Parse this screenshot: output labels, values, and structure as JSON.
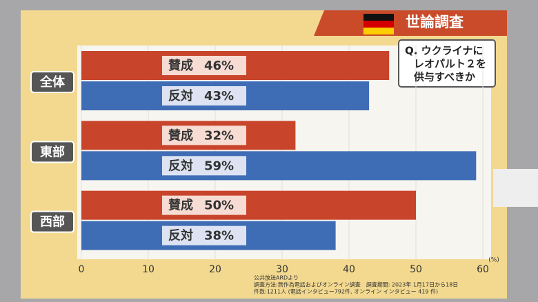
{
  "chart_data": {
    "type": "bar",
    "orientation": "horizontal",
    "title": "世論調査",
    "question": [
      "Q. ウクライナに",
      "レオパルト２を",
      "供与すべきか"
    ],
    "categories": [
      "全体",
      "東部",
      "西部"
    ],
    "series": [
      {
        "name": "賛成",
        "color": "#c8452c",
        "values": [
          46,
          32,
          50
        ],
        "value_labels": [
          "46%",
          "32%",
          "50%"
        ]
      },
      {
        "name": "反対",
        "color": "#3f6db5",
        "values": [
          43,
          59,
          38
        ],
        "value_labels": [
          "43%",
          "59%",
          "38%"
        ]
      }
    ],
    "xlim": [
      0,
      60
    ],
    "xticks": [
      0,
      10,
      20,
      30,
      40,
      50,
      60
    ],
    "x_unit": "(%)",
    "grid": true,
    "notes": [
      "公共放送ARDより",
      "調査方法:無作為電話およびオンライン調査　調査期間: 2023年 1月17日から18日",
      "件数:1211人 (電話インタビュー792件, オンライン インタビュー 419 件)"
    ]
  }
}
